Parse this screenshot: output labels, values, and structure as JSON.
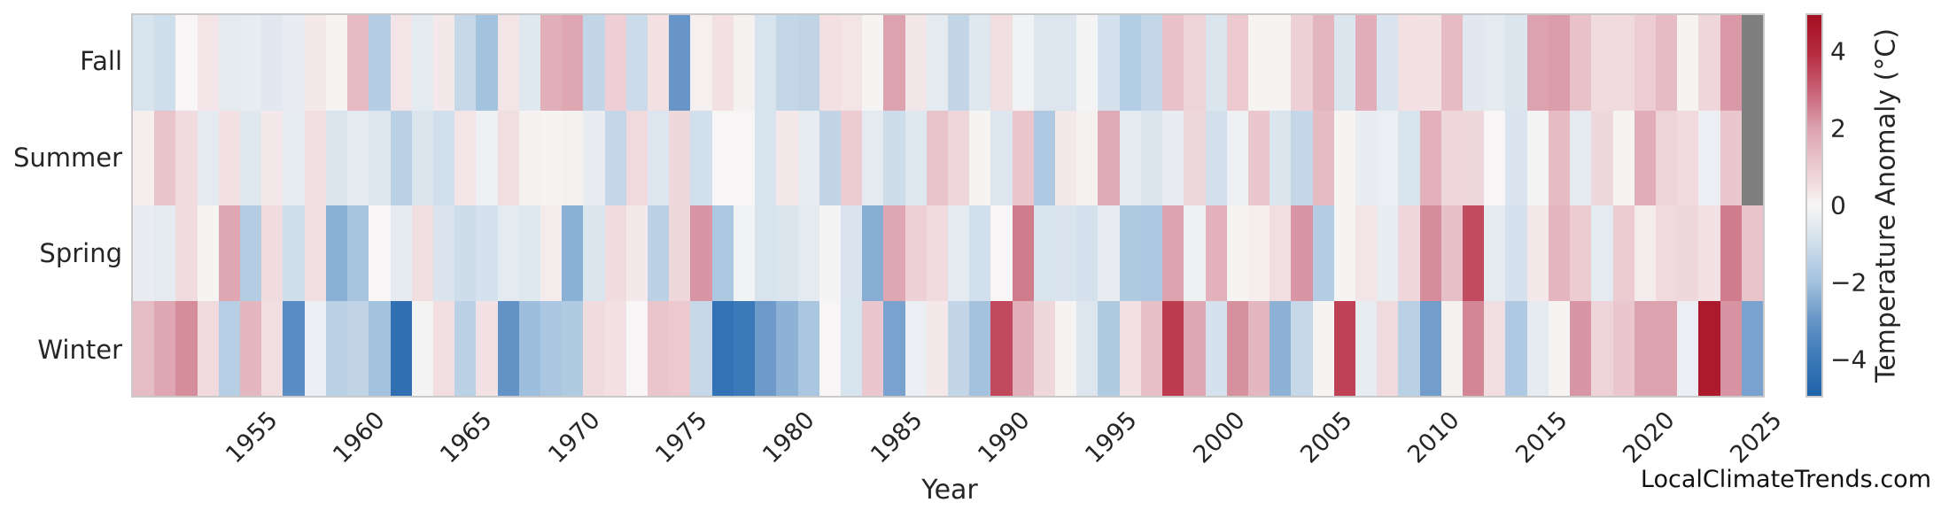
{
  "figure": {
    "background": "#ffffff",
    "text_color": "#262626",
    "spine_color": "#c9c9c9"
  },
  "watermark": "LocalClimateTrends.com",
  "chart_data": {
    "type": "heatmap",
    "title": "",
    "xlabel": "Year",
    "ylabel": "",
    "rows": [
      "Fall",
      "Summer",
      "Spring",
      "Winter"
    ],
    "year_start": 1950,
    "year_end": 2025,
    "xtick_labels": [
      "1955",
      "1960",
      "1965",
      "1970",
      "1975",
      "1980",
      "1985",
      "1990",
      "1995",
      "2000",
      "2005",
      "2010",
      "2015",
      "2020",
      "2025"
    ],
    "series": [
      {
        "name": "Fall",
        "values": [
          -0.8,
          -1.0,
          0.0,
          0.4,
          -0.5,
          -0.4,
          -0.55,
          -0.35,
          0.3,
          0.05,
          1.4,
          -1.6,
          0.4,
          -0.5,
          0.3,
          -1.2,
          -2.0,
          0.4,
          -0.6,
          1.7,
          1.9,
          -1.3,
          0.9,
          -1.1,
          0.5,
          -3.0,
          0.15,
          0.5,
          0.1,
          -0.8,
          -1.25,
          -1.35,
          0.5,
          0.4,
          0.05,
          2.0,
          0.35,
          -0.5,
          -1.3,
          -0.6,
          0.55,
          -0.15,
          -0.65,
          -0.65,
          -0.05,
          -0.85,
          -1.65,
          -1.25,
          1.25,
          0.8,
          -0.7,
          1.05,
          0.05,
          0.05,
          0.85,
          1.55,
          -0.7,
          1.75,
          -0.75,
          0.5,
          0.45,
          1.4,
          -0.55,
          -0.5,
          -0.7,
          2.0,
          2.1,
          1.25,
          0.6,
          0.65,
          0.95,
          1.4,
          0.05,
          0.75,
          2.15,
          null
        ]
      },
      {
        "name": "Summer",
        "values": [
          0.2,
          1.2,
          0.6,
          -0.5,
          0.5,
          -0.6,
          0.3,
          -0.4,
          0.55,
          -0.7,
          -0.5,
          -0.65,
          -1.5,
          -0.7,
          -0.95,
          0.4,
          -0.2,
          0.55,
          0.1,
          0.05,
          0.1,
          -0.35,
          -1.25,
          0.65,
          -0.65,
          0.7,
          -0.95,
          0.0,
          0.0,
          -0.8,
          0.3,
          -0.4,
          -1.35,
          1.0,
          -0.5,
          -1.05,
          -0.6,
          1.2,
          0.75,
          0.05,
          -0.65,
          1.15,
          -1.75,
          0.3,
          0.1,
          1.8,
          -0.5,
          -0.7,
          -0.35,
          0.7,
          -0.9,
          -0.2,
          1.1,
          -0.7,
          -1.25,
          1.4,
          0.05,
          -0.35,
          -0.3,
          -0.8,
          1.65,
          0.75,
          0.7,
          0.0,
          -0.75,
          -0.1,
          1.4,
          -0.45,
          0.7,
          0.05,
          1.75,
          0.8,
          0.65,
          -0.3,
          1.1,
          null
        ]
      },
      {
        "name": "Spring",
        "values": [
          -0.35,
          -0.5,
          0.6,
          0.05,
          1.9,
          -1.6,
          0.6,
          -1.0,
          0.55,
          -2.4,
          -1.9,
          0.0,
          -0.45,
          0.55,
          -0.75,
          -1.05,
          -0.85,
          -0.5,
          -0.6,
          0.25,
          -2.4,
          -0.7,
          0.6,
          0.3,
          -1.45,
          0.7,
          2.2,
          -1.8,
          -0.15,
          -0.8,
          -0.7,
          -0.5,
          -0.05,
          -0.75,
          -2.45,
          1.9,
          0.85,
          0.65,
          -0.5,
          -0.95,
          0.0,
          2.6,
          -0.8,
          -0.75,
          -0.85,
          -0.35,
          -1.7,
          -1.8,
          2.0,
          -0.2,
          1.65,
          0.05,
          0.2,
          0.55,
          2.2,
          -1.6,
          0.05,
          0.4,
          -0.4,
          0.75,
          2.35,
          1.3,
          3.4,
          -0.5,
          -0.85,
          0.3,
          1.5,
          1.0,
          -0.5,
          1.0,
          0.25,
          0.65,
          0.7,
          0.45,
          2.6,
          1.2
        ]
      },
      {
        "name": "Winter",
        "values": [
          1.35,
          1.9,
          2.35,
          0.65,
          -1.55,
          1.5,
          0.55,
          -3.3,
          -0.3,
          -1.5,
          -1.35,
          -2.0,
          -4.4,
          -0.1,
          0.55,
          -1.45,
          0.45,
          -3.1,
          -2.1,
          -1.85,
          -1.7,
          0.6,
          0.5,
          0.0,
          1.15,
          1.05,
          -1.2,
          -4.3,
          -4.0,
          -2.9,
          -2.35,
          -1.85,
          0.0,
          -0.8,
          1.1,
          -2.7,
          -0.3,
          0.3,
          -1.3,
          -2.0,
          3.45,
          1.7,
          0.7,
          0.05,
          -0.65,
          -1.7,
          0.45,
          1.3,
          3.7,
          1.9,
          -0.85,
          2.3,
          1.5,
          -2.35,
          -1.2,
          0.05,
          3.6,
          -0.4,
          0.65,
          -1.5,
          -2.8,
          0.1,
          2.45,
          0.55,
          -1.75,
          -0.45,
          0.05,
          2.2,
          0.8,
          1.1,
          2.0,
          2.0,
          -0.3,
          4.6,
          2.25,
          -2.7
        ]
      }
    ],
    "colorbar": {
      "label": "Temperature Anomaly (°C)",
      "vmin": -5,
      "vmax": 5,
      "tick_labels": [
        {
          "value": 4,
          "label": "4"
        },
        {
          "value": 2,
          "label": "2"
        },
        {
          "value": 0,
          "label": "0"
        },
        {
          "value": -2,
          "label": "−2"
        },
        {
          "value": -4,
          "label": "−4"
        }
      ]
    },
    "missing_color": "#7f7f7f",
    "colormap_stops": [
      [
        -5,
        "#1f63aa"
      ],
      [
        -4,
        "#3c79b8"
      ],
      [
        -3,
        "#6795c7"
      ],
      [
        -2,
        "#a3c2de"
      ],
      [
        -1,
        "#cfdeeb"
      ],
      [
        0,
        "#f7f5f5"
      ],
      [
        1,
        "#eccbd1"
      ],
      [
        2,
        "#dca3af"
      ],
      [
        3,
        "#c96277"
      ],
      [
        4,
        "#b62b3e"
      ],
      [
        5,
        "#a50f23"
      ]
    ],
    "grid": false,
    "legend_position": "none"
  }
}
